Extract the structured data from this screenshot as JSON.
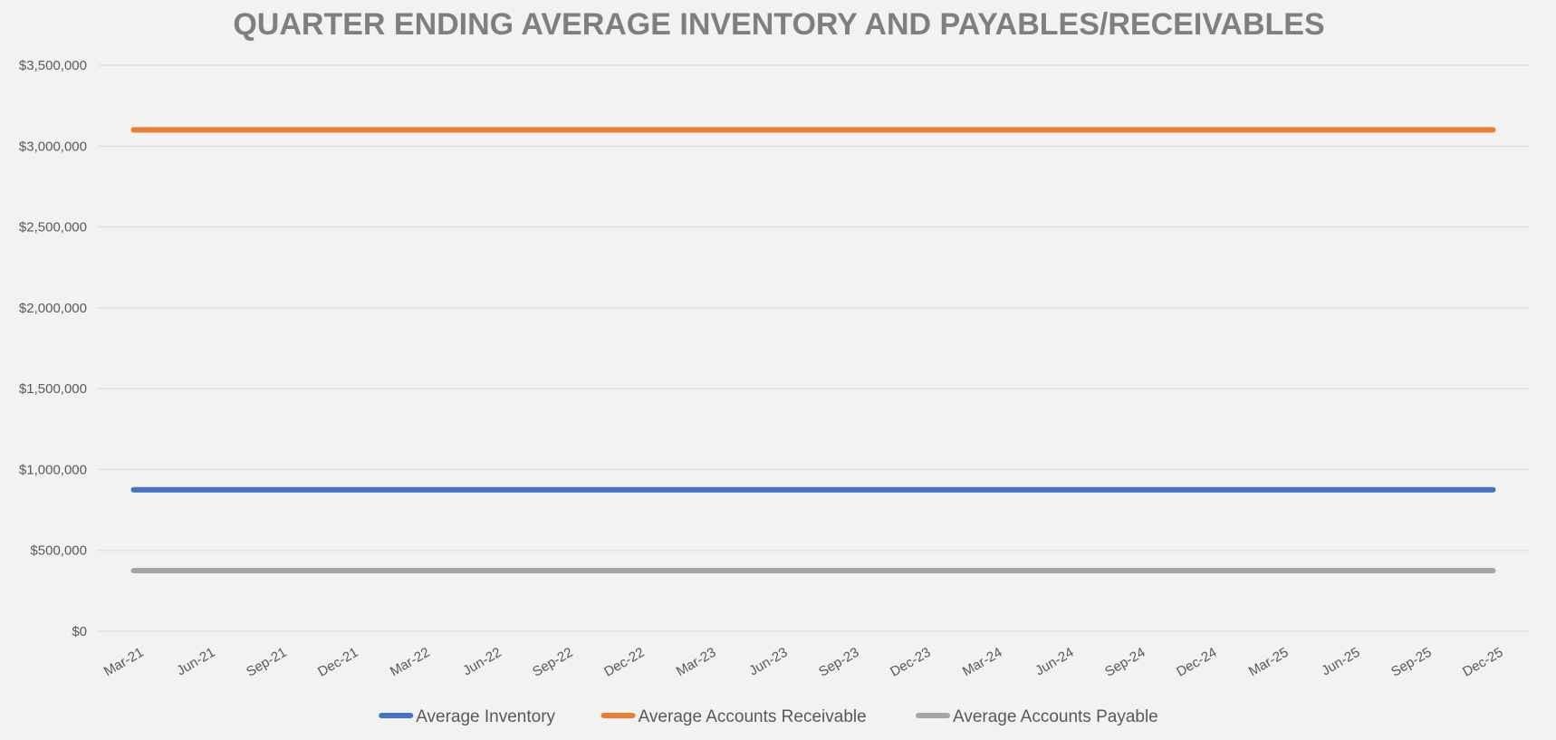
{
  "chart_data": {
    "type": "line",
    "title": "QUARTER ENDING AVERAGE INVENTORY AND PAYABLES/RECEIVABLES",
    "xlabel": "",
    "ylabel": "",
    "x": [
      "Mar-21",
      "Jun-21",
      "Sep-21",
      "Dec-21",
      "Mar-22",
      "Jun-22",
      "Sep-22",
      "Dec-22",
      "Mar-23",
      "Jun-23",
      "Sep-23",
      "Dec-23",
      "Mar-24",
      "Jun-24",
      "Sep-24",
      "Dec-24",
      "Mar-25",
      "Jun-25",
      "Sep-25",
      "Dec-25"
    ],
    "ylim": [
      0,
      3500000
    ],
    "y_ticks": [
      0,
      500000,
      1000000,
      1500000,
      2000000,
      2500000,
      3000000,
      3500000
    ],
    "y_tick_labels": [
      "$0",
      "$500,000",
      "$1,000,000",
      "$1,500,000",
      "$2,000,000",
      "$2,500,000",
      "$3,000,000",
      "$3,500,000"
    ],
    "grid": true,
    "legend_position": "bottom",
    "series": [
      {
        "name": "Average Inventory",
        "color": "#4472c4",
        "values": [
          875000,
          875000,
          875000,
          875000,
          875000,
          875000,
          875000,
          875000,
          875000,
          875000,
          875000,
          875000,
          875000,
          875000,
          875000,
          875000,
          875000,
          875000,
          875000,
          875000
        ]
      },
      {
        "name": "Average Accounts Receivable",
        "color": "#ed7d31",
        "values": [
          3100000,
          3100000,
          3100000,
          3100000,
          3100000,
          3100000,
          3100000,
          3100000,
          3100000,
          3100000,
          3100000,
          3100000,
          3100000,
          3100000,
          3100000,
          3100000,
          3100000,
          3100000,
          3100000,
          3100000
        ]
      },
      {
        "name": "Average Accounts Payable",
        "color": "#a5a5a5",
        "values": [
          375000,
          375000,
          375000,
          375000,
          375000,
          375000,
          375000,
          375000,
          375000,
          375000,
          375000,
          375000,
          375000,
          375000,
          375000,
          375000,
          375000,
          375000,
          375000,
          375000
        ]
      }
    ]
  }
}
